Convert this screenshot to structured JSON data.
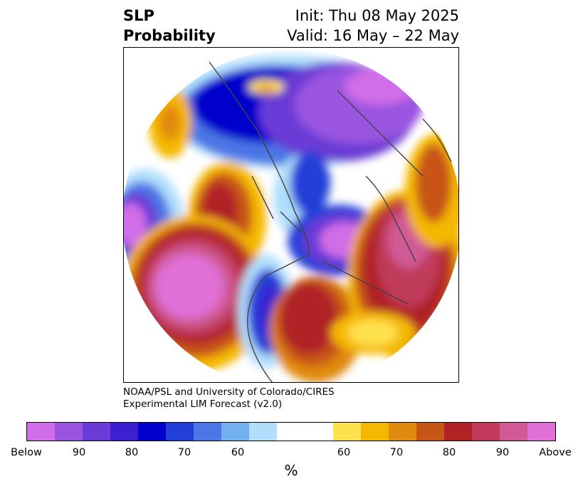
{
  "title": {
    "left_line1": "SLP",
    "left_line2": "Probability",
    "right_line1": "Init: Thu 08 May 2025",
    "right_line2": "Valid: 16 May – 22 May"
  },
  "credit": {
    "line1": "NOAA/PSL and University of Colorado/CIRES",
    "line2": "Experimental LIM Forecast (v2.0)"
  },
  "colorbar": {
    "colors": [
      "#d16de8",
      "#9a55e0",
      "#6a3bd6",
      "#3a20d0",
      "#0000cc",
      "#2240d8",
      "#4b76e6",
      "#73b0f0",
      "#b0defb",
      "#ffffff",
      "#ffe14d",
      "#f5b800",
      "#e08a10",
      "#c85518",
      "#b02226",
      "#c03a5a",
      "#d05a95",
      "#e070d6"
    ],
    "tick_labels": [
      "Below",
      "90",
      "80",
      "70",
      "60",
      "60",
      "70",
      "80",
      "90",
      "Above"
    ],
    "unit": "%"
  },
  "map": {
    "projection": "north-polar-stereographic",
    "features": [
      "below-normal-slp-north-pacific-alaska",
      "below-normal-slp-greenland",
      "below-normal-slp-western-us",
      "above-normal-slp-eastern-us",
      "above-normal-slp-north-atlantic",
      "above-normal-slp-siberia",
      "above-normal-slp-northeast-pacific"
    ]
  }
}
